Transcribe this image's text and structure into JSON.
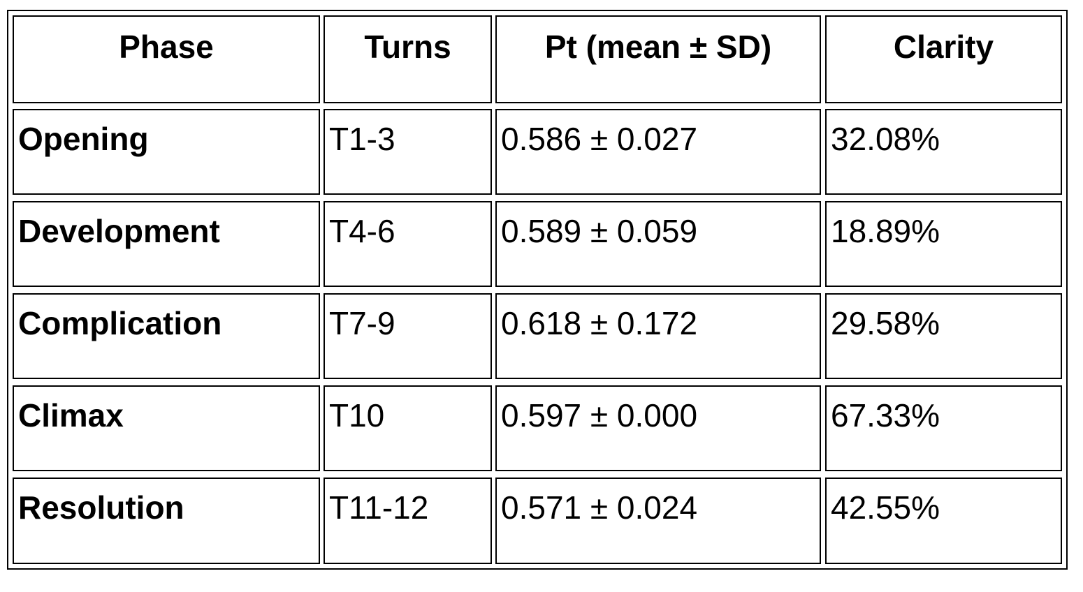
{
  "table": {
    "header": [
      "Phase",
      "Turns",
      "Pt (mean ± SD)",
      "Clarity"
    ],
    "rows": [
      [
        "Opening",
        "T1-3",
        "0.586 ± 0.027",
        "32.08%"
      ],
      [
        "Development",
        "T4-6",
        "0.589 ± 0.059",
        "18.89%"
      ],
      [
        "Complication",
        "T7-9",
        "0.618 ± 0.172",
        "29.58%"
      ],
      [
        "Climax",
        "T10",
        "0.597 ± 0.000",
        "67.33%"
      ],
      [
        "Resolution",
        "T11-12",
        "0.571 ± 0.024",
        "42.55%"
      ]
    ]
  }
}
